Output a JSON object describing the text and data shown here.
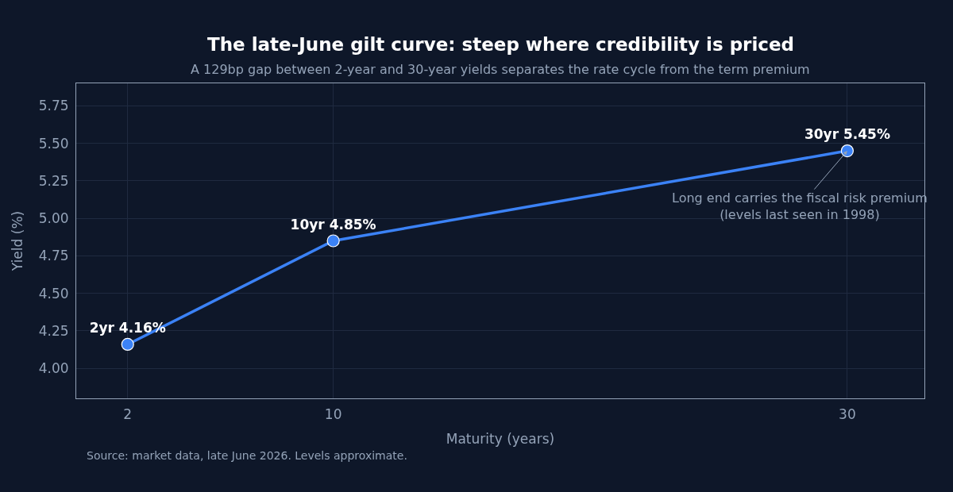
{
  "chart_data": {
    "type": "line",
    "title": "The late-June gilt curve: steep where credibility is priced",
    "subtitle": "A 129bp gap between 2-year and 30-year yields separates the rate cycle from the term premium",
    "xlabel": "Maturity (years)",
    "ylabel": "Yield (%)",
    "x": [
      2,
      10,
      30
    ],
    "series": [
      {
        "color": "#3b82f6",
        "values": [
          4.16,
          4.85,
          5.45
        ],
        "value_labels": [
          "2yr 4.16%",
          "10yr 4.85%",
          "30yr 5.45%"
        ]
      }
    ],
    "xlim": [
      0,
      33
    ],
    "xticks": [
      2,
      10,
      30
    ],
    "ylim": [
      3.8,
      5.9
    ],
    "yticks": [
      {
        "value": 4.0,
        "label": "4.00"
      },
      {
        "value": 4.25,
        "label": "4.25"
      },
      {
        "value": 4.5,
        "label": "4.50"
      },
      {
        "value": 4.75,
        "label": "4.75"
      },
      {
        "value": 5.0,
        "label": "5.00"
      },
      {
        "value": 5.25,
        "label": "5.25"
      },
      {
        "value": 5.5,
        "label": "5.50"
      },
      {
        "value": 5.75,
        "label": "5.75"
      }
    ],
    "grid": true,
    "marker": "circle",
    "line_style": "solid",
    "annotations": [
      {
        "text": "Long end carries the fiscal risk premium\n(levels last seen in 1998)",
        "x": 30,
        "y": 5.45
      },
      "Source: market data, late June 2026. Levels approximate."
    ]
  }
}
